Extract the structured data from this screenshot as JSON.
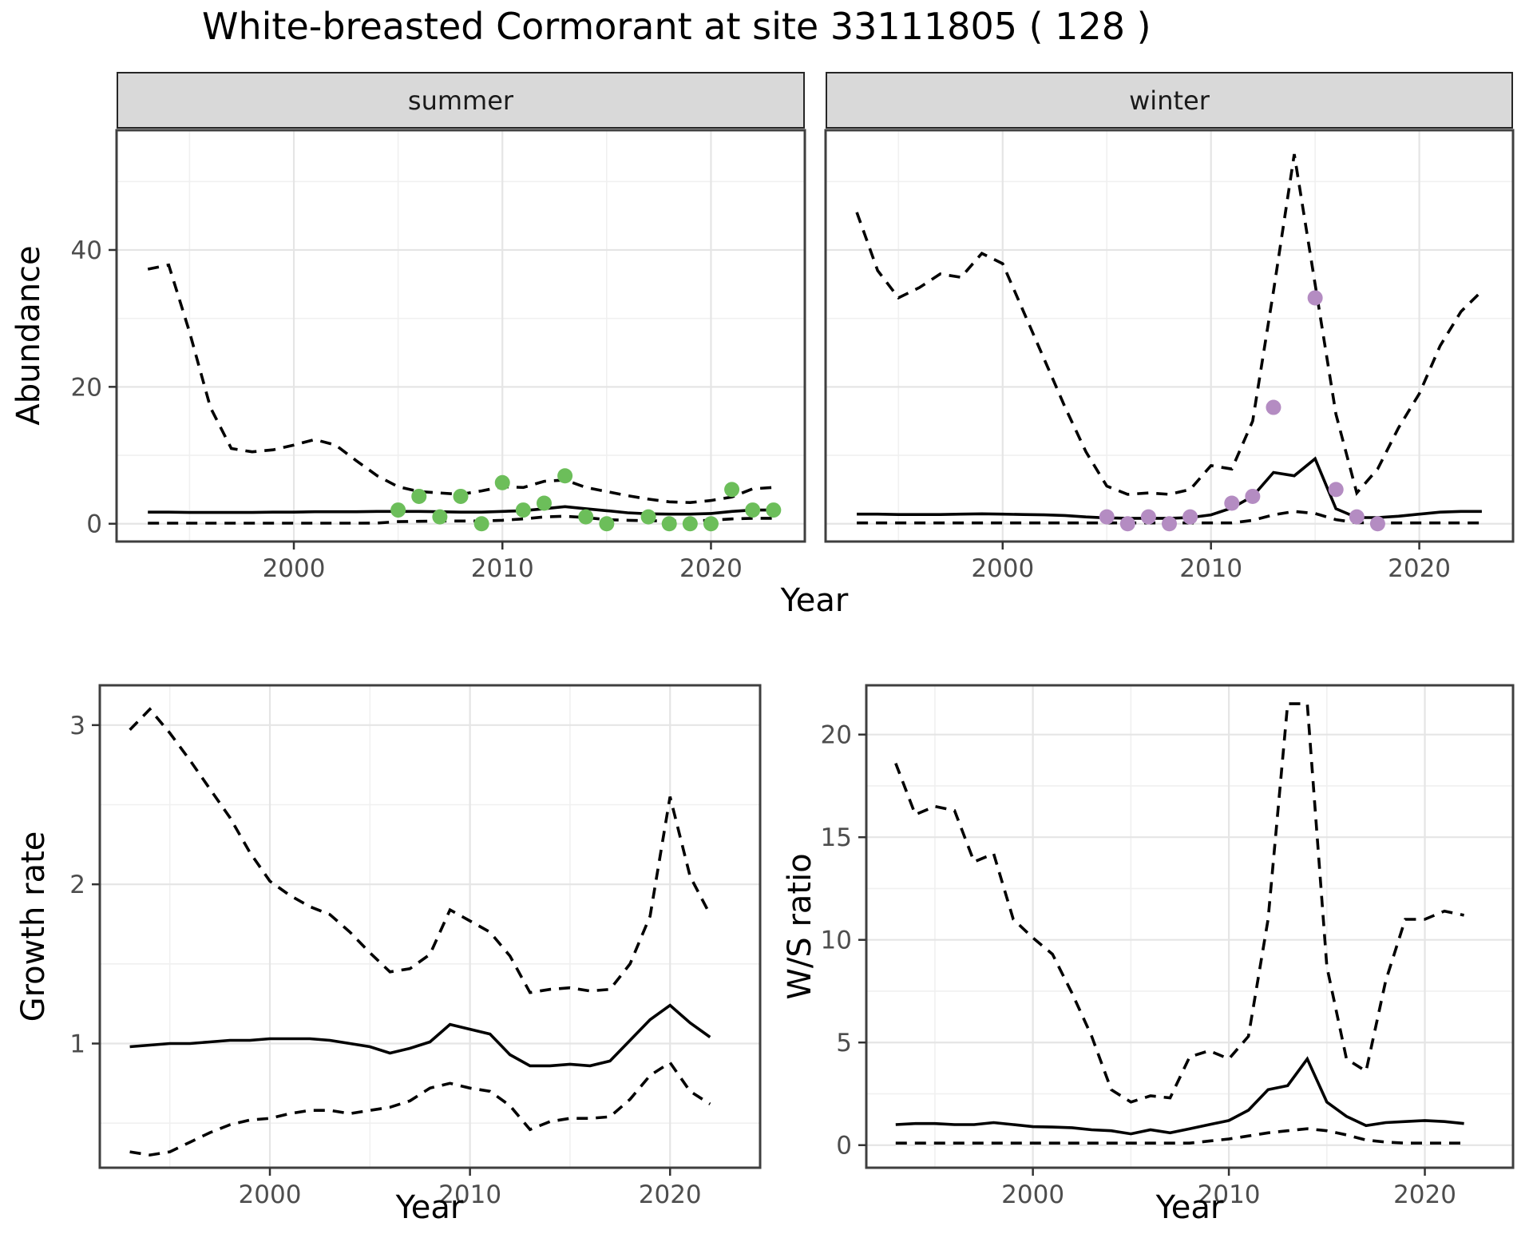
{
  "title": "White-breasted Cormorant at site 33111805 ( 128 )",
  "facets": {
    "summer": "summer",
    "winter": "winter"
  },
  "axis_labels": {
    "abundance": "Abundance",
    "year": "Year",
    "growth_rate": "Growth rate",
    "ws_ratio": "W/S ratio"
  },
  "colors": {
    "summer_point": "#6cbe5a",
    "winter_point": "#b48cc2",
    "line": "#000000",
    "grid_major": "#e5e5e5",
    "grid_minor": "#f0f0f0",
    "panel_border": "#3f3f3f",
    "strip_bg": "#d9d9d9",
    "strip_border": "#262626",
    "axis_text": "#4d4d4d",
    "tick_mark": "#333333",
    "background": "#ffffff"
  },
  "chart_data": [
    {
      "id": "abundance-summer",
      "type": "line",
      "facet_label": "summer",
      "xlabel": "Year",
      "ylabel": "Abundance",
      "xlim": [
        1991.5,
        2024.5
      ],
      "ylim": [
        -2.6,
        57.5
      ],
      "xticks": [
        2000,
        2010,
        2020
      ],
      "yticks": [
        0,
        20,
        40
      ],
      "grid": true,
      "x": [
        1993,
        1994,
        1995,
        1996,
        1997,
        1998,
        1999,
        2000,
        2001,
        2002,
        2003,
        2004,
        2005,
        2006,
        2007,
        2008,
        2009,
        2010,
        2011,
        2012,
        2013,
        2014,
        2015,
        2016,
        2017,
        2018,
        2019,
        2020,
        2021,
        2022,
        2023
      ],
      "series": [
        {
          "name": "upper-ci",
          "style": "dashed",
          "values": [
            37.2,
            37.8,
            28,
            17,
            11,
            10.5,
            10.8,
            11.5,
            12.3,
            11.5,
            9.2,
            7,
            5.4,
            4.7,
            4.5,
            4.3,
            4.8,
            5.4,
            5.3,
            6.2,
            6.4,
            5.3,
            4.7,
            4.1,
            3.6,
            3.2,
            3.1,
            3.4,
            3.9,
            5.1,
            5.3
          ]
        },
        {
          "name": "fitted-median",
          "style": "solid",
          "values": [
            1.7,
            1.7,
            1.65,
            1.65,
            1.65,
            1.65,
            1.7,
            1.7,
            1.75,
            1.75,
            1.75,
            1.8,
            1.8,
            1.8,
            1.75,
            1.7,
            1.7,
            1.8,
            1.9,
            2.2,
            2.5,
            2.2,
            1.9,
            1.6,
            1.45,
            1.4,
            1.4,
            1.5,
            1.8,
            2,
            2
          ]
        },
        {
          "name": "lower-ci",
          "style": "dashed",
          "values": [
            0.08,
            0.08,
            0.08,
            0.08,
            0.08,
            0.08,
            0.08,
            0.08,
            0.08,
            0.08,
            0.08,
            0.1,
            0.3,
            0.35,
            0.4,
            0.4,
            0.4,
            0.5,
            0.7,
            1,
            1.1,
            0.9,
            0.6,
            0.5,
            0.45,
            0.4,
            0.4,
            0.5,
            0.7,
            0.8,
            0.8
          ]
        }
      ],
      "points": {
        "name": "observed-summer",
        "color_key": "summer_point",
        "x": [
          2005,
          2006,
          2007,
          2008,
          2009,
          2010,
          2011,
          2012,
          2013,
          2014,
          2015,
          2017,
          2018,
          2019,
          2020,
          2021,
          2022,
          2023
        ],
        "y": [
          2,
          4,
          1,
          4,
          0,
          6,
          2,
          3,
          7,
          1,
          0,
          1,
          0,
          0,
          0,
          5,
          2,
          2
        ]
      }
    },
    {
      "id": "abundance-winter",
      "type": "line",
      "facet_label": "winter",
      "xlabel": "Year",
      "ylabel": "Abundance",
      "xlim": [
        1991.5,
        2024.5
      ],
      "ylim": [
        -2.6,
        57.5
      ],
      "xticks": [
        2000,
        2010,
        2020
      ],
      "yticks": [
        0,
        20,
        40
      ],
      "grid": true,
      "x": [
        1993,
        1994,
        1995,
        1996,
        1997,
        1998,
        1999,
        2000,
        2001,
        2002,
        2003,
        2004,
        2005,
        2006,
        2007,
        2008,
        2009,
        2010,
        2011,
        2012,
        2013,
        2014,
        2015,
        2016,
        2017,
        2018,
        2019,
        2020,
        2021,
        2022,
        2023
      ],
      "series": [
        {
          "name": "upper-ci",
          "style": "dashed",
          "values": [
            45.5,
            37,
            33,
            34.5,
            36.5,
            36,
            39.5,
            38,
            31,
            24,
            17,
            10.5,
            5.5,
            4.3,
            4.5,
            4.3,
            5,
            8.5,
            8,
            15,
            34,
            54,
            35,
            16,
            4.5,
            8,
            14,
            19,
            26,
            31,
            34
          ]
        },
        {
          "name": "fitted-median",
          "style": "solid",
          "values": [
            1.4,
            1.4,
            1.35,
            1.35,
            1.35,
            1.4,
            1.45,
            1.4,
            1.35,
            1.3,
            1.2,
            1,
            0.85,
            0.8,
            0.8,
            0.8,
            0.9,
            1.3,
            2.3,
            4,
            7.5,
            7,
            9.5,
            2.2,
            0.9,
            0.9,
            1.1,
            1.4,
            1.7,
            1.8,
            1.8
          ]
        },
        {
          "name": "lower-ci",
          "style": "dashed",
          "values": [
            0.12,
            0.12,
            0.12,
            0.12,
            0.12,
            0.12,
            0.12,
            0.12,
            0.12,
            0.12,
            0.12,
            0.12,
            0.12,
            0.12,
            0.12,
            0.12,
            0.12,
            0.12,
            0.12,
            0.5,
            1.3,
            1.8,
            1.5,
            0.6,
            0.15,
            0.12,
            0.12,
            0.12,
            0.12,
            0.12,
            0.12
          ]
        }
      ],
      "points": {
        "name": "observed-winter",
        "color_key": "winter_point",
        "x": [
          2005,
          2006,
          2007,
          2008,
          2009,
          2011,
          2012,
          2013,
          2015,
          2016,
          2017,
          2018
        ],
        "y": [
          1,
          0,
          1,
          0,
          1,
          3,
          4,
          17,
          33,
          5,
          1,
          0
        ]
      }
    },
    {
      "id": "growth-rate",
      "type": "line",
      "facet_label": "",
      "xlabel": "Year",
      "ylabel": "Growth rate",
      "xlim": [
        1991.5,
        2024.5
      ],
      "ylim": [
        0.22,
        3.25
      ],
      "xticks": [
        2000,
        2010,
        2020
      ],
      "yticks": [
        1,
        2,
        3
      ],
      "grid": true,
      "x": [
        1993,
        1994,
        1995,
        1996,
        1997,
        1998,
        1999,
        2000,
        2001,
        2002,
        2003,
        2004,
        2005,
        2006,
        2007,
        2008,
        2009,
        2010,
        2011,
        2012,
        2013,
        2014,
        2015,
        2016,
        2017,
        2018,
        2019,
        2020,
        2021,
        2022
      ],
      "series": [
        {
          "name": "upper-ci",
          "style": "dashed",
          "values": [
            2.97,
            3.1,
            2.95,
            2.78,
            2.6,
            2.42,
            2.2,
            2.02,
            1.93,
            1.86,
            1.81,
            1.7,
            1.57,
            1.45,
            1.47,
            1.56,
            1.84,
            1.77,
            1.7,
            1.55,
            1.32,
            1.34,
            1.35,
            1.33,
            1.34,
            1.5,
            1.8,
            2.55,
            2.05,
            1.81
          ]
        },
        {
          "name": "fitted-median",
          "style": "solid",
          "values": [
            0.98,
            0.99,
            1,
            1,
            1.01,
            1.02,
            1.02,
            1.03,
            1.03,
            1.03,
            1.02,
            1,
            0.98,
            0.94,
            0.97,
            1.01,
            1.12,
            1.09,
            1.06,
            0.93,
            0.86,
            0.86,
            0.87,
            0.86,
            0.89,
            1.02,
            1.15,
            1.24,
            1.13,
            1.04
          ]
        },
        {
          "name": "lower-ci",
          "style": "dashed",
          "values": [
            0.32,
            0.3,
            0.32,
            0.38,
            0.44,
            0.49,
            0.52,
            0.53,
            0.56,
            0.58,
            0.58,
            0.56,
            0.58,
            0.6,
            0.64,
            0.72,
            0.75,
            0.72,
            0.7,
            0.61,
            0.46,
            0.51,
            0.53,
            0.53,
            0.54,
            0.65,
            0.8,
            0.88,
            0.7,
            0.62
          ]
        }
      ]
    },
    {
      "id": "ws-ratio",
      "type": "line",
      "facet_label": "",
      "xlabel": "Year",
      "ylabel": "W/S ratio",
      "xlim": [
        1991.5,
        2024.5
      ],
      "ylim": [
        -1.1,
        22.4
      ],
      "xticks": [
        2000,
        2010,
        2020
      ],
      "yticks": [
        0,
        5,
        10,
        15,
        20
      ],
      "grid": true,
      "x": [
        1993,
        1994,
        1995,
        1996,
        1997,
        1998,
        1999,
        2000,
        2001,
        2002,
        2003,
        2004,
        2005,
        2006,
        2007,
        2008,
        2009,
        2010,
        2011,
        2012,
        2013,
        2014,
        2015,
        2016,
        2017,
        2018,
        2019,
        2020,
        2021,
        2022
      ],
      "series": [
        {
          "name": "upper-ci",
          "style": "dashed",
          "values": [
            18.6,
            16.1,
            16.5,
            16.3,
            13.8,
            14.2,
            11,
            10.1,
            9.3,
            7.4,
            5.3,
            2.7,
            2.1,
            2.4,
            2.3,
            4.3,
            4.6,
            4.2,
            5.3,
            11,
            21.5,
            21.5,
            8.7,
            4.2,
            3.6,
            8,
            11,
            11,
            11.4,
            11.2
          ]
        },
        {
          "name": "fitted-median",
          "style": "solid",
          "values": [
            1,
            1.05,
            1.05,
            1,
            1,
            1.1,
            1,
            0.9,
            0.88,
            0.85,
            0.75,
            0.7,
            0.55,
            0.75,
            0.6,
            0.8,
            1,
            1.2,
            1.7,
            2.7,
            2.9,
            4.2,
            2.1,
            1.4,
            0.95,
            1.1,
            1.15,
            1.2,
            1.15,
            1.05
          ]
        },
        {
          "name": "lower-ci",
          "style": "dashed",
          "values": [
            0.1,
            0.1,
            0.1,
            0.1,
            0.1,
            0.1,
            0.1,
            0.1,
            0.1,
            0.1,
            0.1,
            0.1,
            0.1,
            0.1,
            0.1,
            0.1,
            0.2,
            0.3,
            0.45,
            0.6,
            0.7,
            0.8,
            0.7,
            0.5,
            0.25,
            0.15,
            0.1,
            0.1,
            0.1,
            0.1
          ]
        }
      ]
    }
  ]
}
